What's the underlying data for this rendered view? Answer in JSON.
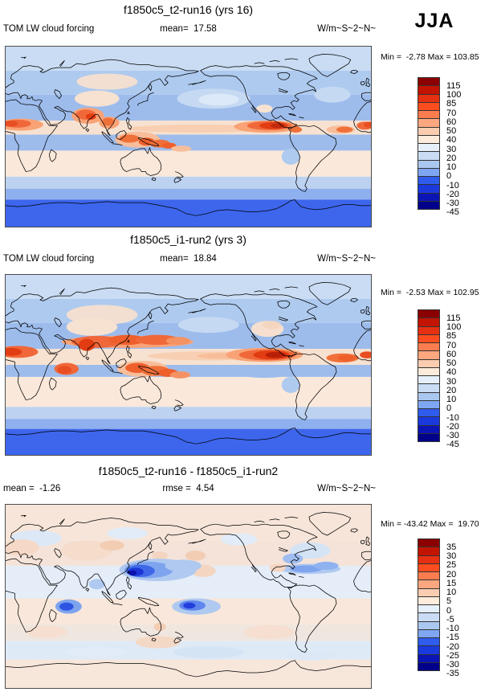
{
  "season_label": "JJA",
  "panels": [
    {
      "title": "f1850c5_t2-run16 (yrs 16)",
      "subtitle_left": "TOM LW cloud forcing",
      "subtitle_center": "mean=  17.58",
      "subtitle_right": "W/m~S~2~N~",
      "minmax": "Min =  -2.78 Max = 103.85",
      "colorbar_labels": [
        "115",
        "100",
        "85",
        "70",
        "60",
        "50",
        "40",
        "30",
        "20",
        "10",
        "0",
        "-10",
        "-20",
        "-30",
        "-45"
      ]
    },
    {
      "title": "f1850c5_i1-run2 (yrs 3)",
      "subtitle_left": "TOM LW cloud forcing",
      "subtitle_center": "mean=  18.84",
      "subtitle_right": "W/m~S~2~N~",
      "minmax": "Min =  -2.53 Max = 102.95",
      "colorbar_labels": [
        "115",
        "100",
        "85",
        "70",
        "60",
        "50",
        "40",
        "30",
        "20",
        "10",
        "0",
        "-10",
        "-20",
        "-30",
        "-45"
      ]
    },
    {
      "title": "f1850c5_t2-run16 - f1850c5_i1-run2",
      "subtitle_left": "mean =  -1.26",
      "subtitle_center": "rmse =  4.54",
      "subtitle_right": "W/m~S~2~N~",
      "minmax": "Min = -43.42 Max =  19.70",
      "colorbar_labels": [
        "35",
        "30",
        "25",
        "20",
        "15",
        "10",
        "5",
        "0",
        "-5",
        "-10",
        "-15",
        "-20",
        "-25",
        "-30",
        "-35"
      ]
    }
  ],
  "colorbar_colors_top_to_bottom": [
    "#8B0000",
    "#C21400",
    "#E63012",
    "#FB4D1F",
    "#FB7C4E",
    "#FCA77F",
    "#FBCDB0",
    "#FDEBDC",
    "#E6F0FA",
    "#C9DCF3",
    "#AAC8EF",
    "#7FA6F2",
    "#2F5CEC",
    "#1A3ADE",
    "#0B14B4",
    "#00008B"
  ],
  "chart_data": {
    "type": "heatmap",
    "subtype": "global lat-lon filled-contour maps with coastlines",
    "projection": "equirectangular, longitude 0-360E left to right, latitude 90N top to 90S bottom",
    "season": "JJA",
    "variable": "TOM LW cloud forcing",
    "units": "W/m~S~2~N~",
    "panels": [
      {
        "title": "f1850c5_t2-run16 (yrs 16)",
        "mean": 17.58,
        "min": -2.78,
        "max": 103.85,
        "contour_levels": [
          -45,
          -30,
          -20,
          -10,
          0,
          10,
          20,
          30,
          40,
          50,
          60,
          70,
          85,
          100,
          115
        ],
        "features": "High LW cloud forcing (red/orange 60-115) over West Africa, India/Southeast Asia, the Maritime Continent and the east Pacific ITCZ off Central America; pale cream band over southern subtropics; blue low values over subtropical oceans and strong blue around Antarctica"
      },
      {
        "title": "f1850c5_i1-run2 (yrs 3)",
        "mean": 18.84,
        "min": -2.53,
        "max": 102.95,
        "contour_levels": [
          -45,
          -30,
          -20,
          -10,
          0,
          10,
          20,
          30,
          40,
          50,
          60,
          70,
          85,
          100,
          115
        ],
        "features": "Similar pattern but stronger/broader red maxima: a red band across South Asia and the west Pacific near 20-28N, stronger east Pacific ITCZ, red western Indian Ocean blob, more peach over North America"
      },
      {
        "title": "f1850c5_t2-run16 - f1850c5_i1-run2",
        "mean": -1.26,
        "rmse": 4.54,
        "min": -43.42,
        "max": 19.7,
        "contour_levels": [
          -35,
          -30,
          -25,
          -20,
          -15,
          -10,
          -5,
          0,
          5,
          10,
          15,
          20,
          25,
          30,
          35
        ],
        "features": "Mostly small differences (pale peach/pale blue); strong negative (dark blue) anomaly over the northwest tropical Pacific / East China Sea, plus blue anomalies over the central equatorial Pacific, western Indian Ocean, subtropical North Atlantic and eastern US"
      }
    ],
    "colorbar_colors_top_to_bottom": [
      "#8B0000",
      "#C21400",
      "#E63012",
      "#FB4D1F",
      "#FB7C4E",
      "#FCA77F",
      "#FBCDB0",
      "#FDEBDC",
      "#E6F0FA",
      "#C9DCF3",
      "#AAC8EF",
      "#7FA6F2",
      "#2F5CEC",
      "#1A3ADE",
      "#0B14B4",
      "#00008B"
    ],
    "legend_position": "right of each map, vertical labelbar"
  }
}
